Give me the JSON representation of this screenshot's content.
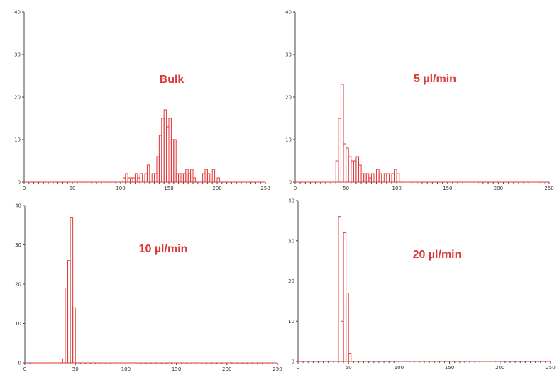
{
  "colors": {
    "bar": "#e03535",
    "title": "#d93a3a",
    "axis": "#444444"
  },
  "chart_data": [
    {
      "type": "bar",
      "title": "Bulk",
      "xlim": [
        0,
        250
      ],
      "ylim": [
        0,
        40
      ],
      "xticks": [
        0,
        50,
        100,
        150,
        200,
        250
      ],
      "yticks": [
        0,
        10,
        20,
        30,
        40
      ],
      "bin_width": 2.5,
      "bins": [
        {
          "x": 102.5,
          "y": 1
        },
        {
          "x": 105,
          "y": 2
        },
        {
          "x": 107.5,
          "y": 1
        },
        {
          "x": 110,
          "y": 1
        },
        {
          "x": 112.5,
          "y": 1
        },
        {
          "x": 115,
          "y": 2
        },
        {
          "x": 117.5,
          "y": 1
        },
        {
          "x": 120,
          "y": 2
        },
        {
          "x": 125,
          "y": 2
        },
        {
          "x": 127.5,
          "y": 4
        },
        {
          "x": 132.5,
          "y": 2
        },
        {
          "x": 135,
          "y": 2
        },
        {
          "x": 137.5,
          "y": 6
        },
        {
          "x": 140,
          "y": 11
        },
        {
          "x": 142.5,
          "y": 15
        },
        {
          "x": 145,
          "y": 17
        },
        {
          "x": 147.5,
          "y": 13
        },
        {
          "x": 150,
          "y": 15
        },
        {
          "x": 152.5,
          "y": 10
        },
        {
          "x": 155,
          "y": 10
        },
        {
          "x": 157.5,
          "y": 2
        },
        {
          "x": 160,
          "y": 2
        },
        {
          "x": 162.5,
          "y": 2
        },
        {
          "x": 165,
          "y": 2
        },
        {
          "x": 167.5,
          "y": 3
        },
        {
          "x": 170,
          "y": 2
        },
        {
          "x": 172.5,
          "y": 3
        },
        {
          "x": 175,
          "y": 1
        },
        {
          "x": 185,
          "y": 2
        },
        {
          "x": 187.5,
          "y": 3
        },
        {
          "x": 190,
          "y": 2
        },
        {
          "x": 195,
          "y": 3
        },
        {
          "x": 200,
          "y": 1
        }
      ]
    },
    {
      "type": "bar",
      "title": "5 µl/min",
      "xlim": [
        0,
        250
      ],
      "ylim": [
        0,
        40
      ],
      "xticks": [
        0,
        50,
        100,
        150,
        200,
        250
      ],
      "yticks": [
        0,
        10,
        20,
        30,
        40
      ],
      "bin_width": 2.5,
      "bins": [
        {
          "x": 40,
          "y": 5
        },
        {
          "x": 42.5,
          "y": 15
        },
        {
          "x": 45,
          "y": 23
        },
        {
          "x": 47.5,
          "y": 9
        },
        {
          "x": 50,
          "y": 8
        },
        {
          "x": 52.5,
          "y": 6
        },
        {
          "x": 55,
          "y": 5
        },
        {
          "x": 57.5,
          "y": 5
        },
        {
          "x": 60,
          "y": 6
        },
        {
          "x": 62.5,
          "y": 4
        },
        {
          "x": 65,
          "y": 2
        },
        {
          "x": 67.5,
          "y": 2
        },
        {
          "x": 70,
          "y": 2
        },
        {
          "x": 72.5,
          "y": 1
        },
        {
          "x": 75,
          "y": 2
        },
        {
          "x": 80,
          "y": 3
        },
        {
          "x": 82.5,
          "y": 2
        },
        {
          "x": 87.5,
          "y": 2
        },
        {
          "x": 90,
          "y": 2
        },
        {
          "x": 95,
          "y": 2
        },
        {
          "x": 97.5,
          "y": 3
        },
        {
          "x": 100,
          "y": 2
        }
      ]
    },
    {
      "type": "bar",
      "title": "10 µl/min",
      "xlim": [
        0,
        250
      ],
      "ylim": [
        0,
        40
      ],
      "xticks": [
        0,
        50,
        100,
        150,
        200,
        250
      ],
      "yticks": [
        0,
        10,
        20,
        30,
        40
      ],
      "bin_width": 2.5,
      "bins": [
        {
          "x": 37.5,
          "y": 1
        },
        {
          "x": 40,
          "y": 19
        },
        {
          "x": 42.5,
          "y": 26
        },
        {
          "x": 45,
          "y": 37
        },
        {
          "x": 47.5,
          "y": 14
        }
      ]
    },
    {
      "type": "bar",
      "title": "20 µl/min",
      "xlim": [
        0,
        250
      ],
      "ylim": [
        0,
        40
      ],
      "xticks": [
        0,
        50,
        100,
        150,
        200,
        250
      ],
      "yticks": [
        0,
        10,
        20,
        30,
        40
      ],
      "bin_width": 2.5,
      "bins": [
        {
          "x": 40,
          "y": 36
        },
        {
          "x": 42.5,
          "y": 10
        },
        {
          "x": 45,
          "y": 32
        },
        {
          "x": 47.5,
          "y": 17
        },
        {
          "x": 50,
          "y": 2
        }
      ]
    }
  ]
}
